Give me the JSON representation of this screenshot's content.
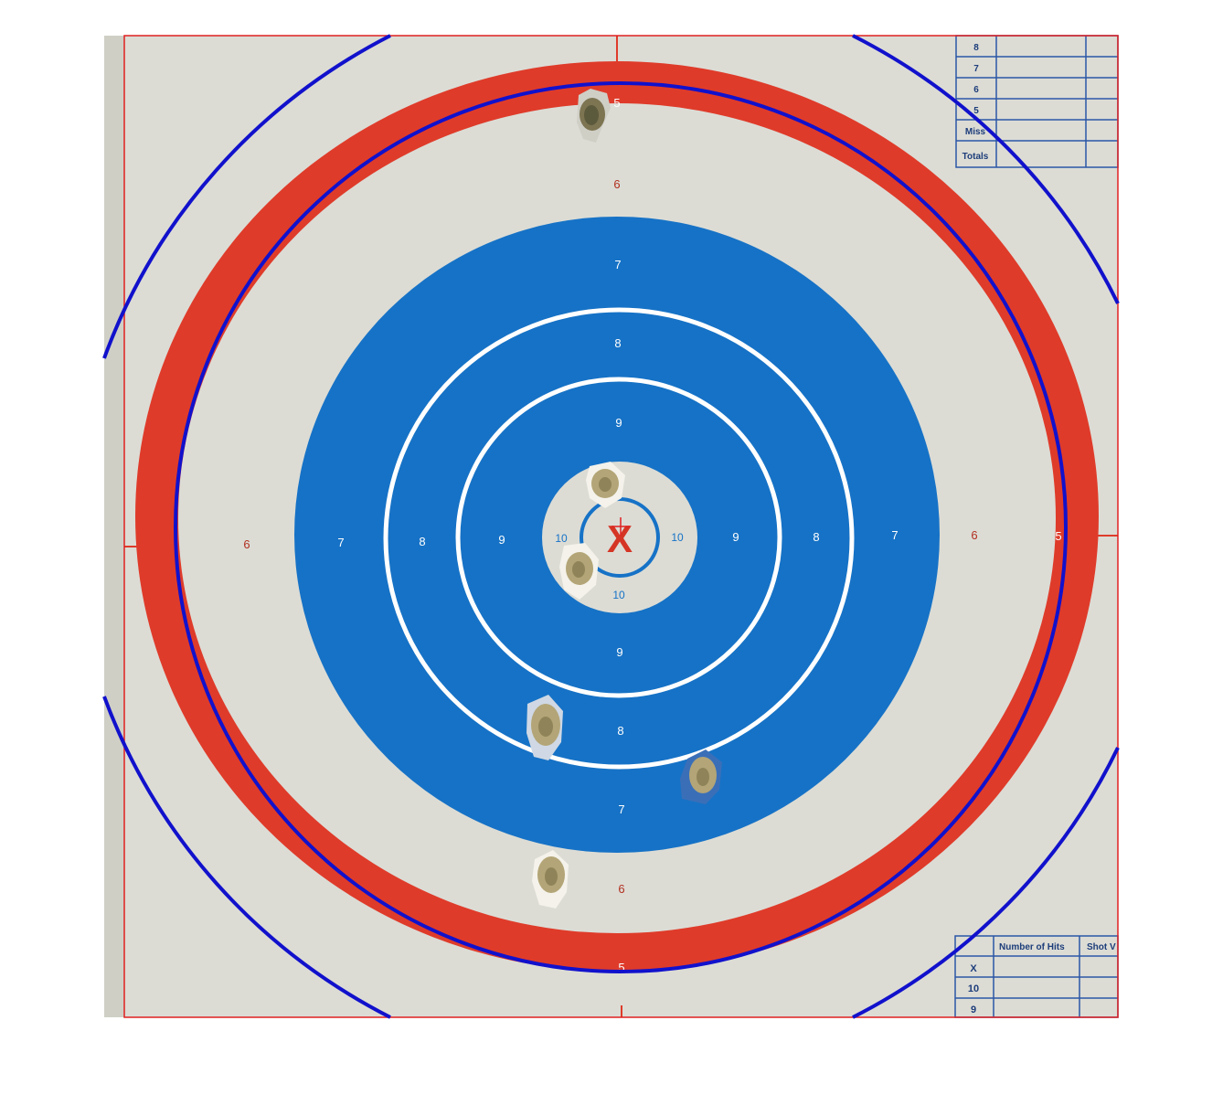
{
  "colors": {
    "paper": "#dcdcd5",
    "paper_strip": "#cfcfc6",
    "red": "#df3b2a",
    "blue": "#1672c6",
    "ring_line": "#ffffff",
    "overlay_blue": "#1111cc",
    "frame_red": "#e02020",
    "table_line": "#2b56a6",
    "table_text": "#1d3d7a",
    "hole": "#b3a577",
    "hole_dark": "#5c5a3c"
  },
  "target": {
    "center_mark": "X",
    "ring_labels": {
      "five": "5",
      "six": "6",
      "seven": "7",
      "eight": "8",
      "nine": "9",
      "ten": "10"
    }
  },
  "score_table_top": {
    "rows": [
      "8",
      "7",
      "6",
      "5",
      "Miss",
      "Totals"
    ]
  },
  "score_table_bottom": {
    "headers": [
      "Number of Hits",
      "Shot V"
    ],
    "rows": [
      "X",
      "10",
      "9"
    ]
  },
  "shot_holes": [
    {
      "name": "hole-top-red-ring"
    },
    {
      "name": "hole-upper-center"
    },
    {
      "name": "hole-lower-center"
    },
    {
      "name": "hole-lower-left-8"
    },
    {
      "name": "hole-lower-right-7"
    },
    {
      "name": "hole-bottom-6"
    }
  ]
}
